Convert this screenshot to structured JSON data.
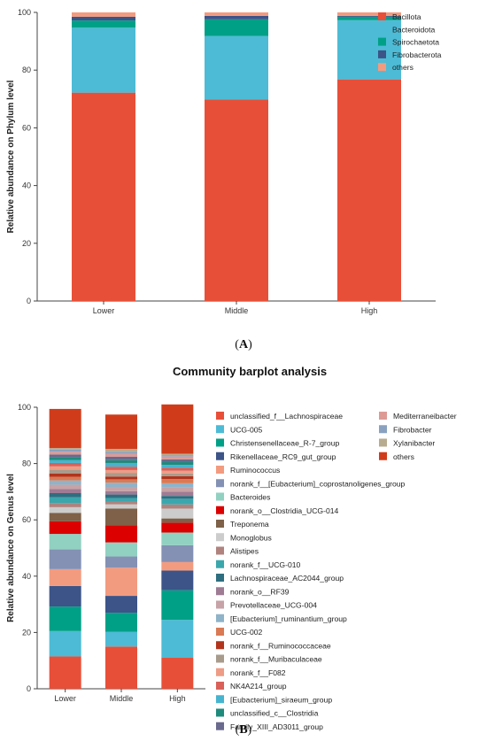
{
  "colors": {
    "Bacillota": "#e84f38",
    "Bacteroidota": "#4dbbd5",
    "Spirochaetota": "#00a087",
    "Fibrobacterota": "#3c5488",
    "others_A": "#f39b7f"
  },
  "panel_a_label": "A",
  "panel_b_label": "B",
  "chart_data": [
    {
      "type": "bar",
      "stacked": true,
      "title": "",
      "xlabel": "",
      "ylabel": "Relative abundance on Phylum level",
      "ylim": [
        0,
        100
      ],
      "yticks": [
        "0",
        "20",
        "40",
        "60",
        "80",
        "100"
      ],
      "categories": [
        "Lower",
        "Middle",
        "High"
      ],
      "legend_position": "right",
      "series": [
        {
          "name": "Bacillota",
          "color": "#e84f38",
          "values": [
            72.2,
            69.8,
            76.8
          ]
        },
        {
          "name": "Bacteroidota",
          "color": "#4dbbd5",
          "values": [
            22.5,
            22.0,
            20.5
          ]
        },
        {
          "name": "Spirochaetota",
          "color": "#00a087",
          "values": [
            2.5,
            5.8,
            1.2
          ]
        },
        {
          "name": "Fibrobacterota",
          "color": "#3c5488",
          "values": [
            1.3,
            1.2,
            0.3
          ]
        },
        {
          "name": "others",
          "color": "#f39b7f",
          "values": [
            1.5,
            1.2,
            1.2
          ]
        }
      ]
    },
    {
      "type": "bar",
      "stacked": true,
      "title": "Community barplot analysis",
      "xlabel": "",
      "ylabel": "Relative abundance on Genus level",
      "ylim": [
        0,
        100
      ],
      "yticks": [
        "0",
        "20",
        "40",
        "60",
        "80",
        "100"
      ],
      "categories": [
        "Lower",
        "Middle",
        "High"
      ],
      "legend_position": "right",
      "series": [
        {
          "name": "unclassified_f__Lachnospiraceae",
          "color": "#e84f38",
          "values": [
            11.5,
            15.0,
            11.0
          ]
        },
        {
          "name": "UCG-005",
          "color": "#4dbbd5",
          "values": [
            9.0,
            5.2,
            13.5
          ]
        },
        {
          "name": "Christensenellaceae_R-7_group",
          "color": "#00a087",
          "values": [
            8.7,
            6.8,
            10.5
          ]
        },
        {
          "name": "Rikenellaceae_RC9_gut_group",
          "color": "#3c5488",
          "values": [
            7.3,
            6.0,
            7.0
          ]
        },
        {
          "name": "Ruminococcus",
          "color": "#f39b7f",
          "values": [
            6.0,
            10.0,
            3.0
          ]
        },
        {
          "name": "norank_f__[Eubacterium]_coprostanoligenes_group",
          "color": "#8491b4",
          "values": [
            7.0,
            4.0,
            6.0
          ]
        },
        {
          "name": "Bacteroides",
          "color": "#91d1c2",
          "values": [
            5.5,
            5.0,
            4.5
          ]
        },
        {
          "name": "norank_o__Clostridia_UCG-014",
          "color": "#dc0000",
          "values": [
            4.5,
            6.0,
            3.5
          ]
        },
        {
          "name": "Treponema",
          "color": "#7e6148",
          "values": [
            3.0,
            6.0,
            1.5
          ]
        },
        {
          "name": "Monoglobus",
          "color": "#cccccc",
          "values": [
            2.0,
            1.5,
            3.5
          ]
        },
        {
          "name": "Alistipes",
          "color": "#b0837e",
          "values": [
            1.5,
            1.0,
            1.5
          ]
        },
        {
          "name": "norank_f__UCG-010",
          "color": "#3aa7ad",
          "values": [
            2.0,
            1.2,
            2.0
          ]
        },
        {
          "name": "Lachnospiraceae_AC2044_group",
          "color": "#2e6e80",
          "values": [
            1.5,
            1.3,
            1.0
          ]
        },
        {
          "name": "norank_o__RF39",
          "color": "#9f7b94",
          "values": [
            1.5,
            1.2,
            1.5
          ]
        },
        {
          "name": "Prevotellaceae_UCG-004",
          "color": "#c7a2a6",
          "values": [
            1.5,
            1.5,
            1.5
          ]
        },
        {
          "name": "[Eubacterium]_ruminantium_group",
          "color": "#8fb3c9",
          "values": [
            1.5,
            1.5,
            1.5
          ]
        },
        {
          "name": "UCG-002",
          "color": "#d97a54",
          "values": [
            1.3,
            1.2,
            1.5
          ]
        },
        {
          "name": "norank_f__Ruminococcaceae",
          "color": "#b2341c",
          "values": [
            1.2,
            1.0,
            1.0
          ]
        },
        {
          "name": "norank_f__Muribaculaceae",
          "color": "#a89b8c",
          "values": [
            1.3,
            1.3,
            1.0
          ]
        },
        {
          "name": "norank_f__F082",
          "color": "#ee9c86",
          "values": [
            1.2,
            1.0,
            1.0
          ]
        },
        {
          "name": "NK4A214_group",
          "color": "#d9615a",
          "values": [
            1.2,
            1.2,
            1.0
          ]
        },
        {
          "name": "[Eubacterium]_siraeum_group",
          "color": "#46b4cf",
          "values": [
            1.0,
            1.3,
            1.0
          ]
        },
        {
          "name": "unclassified_c__Clostridia",
          "color": "#1e8b7c",
          "values": [
            1.0,
            1.0,
            1.0
          ]
        },
        {
          "name": "Family_XIII_AD3011_group",
          "color": "#6a6a8e",
          "values": [
            1.0,
            1.2,
            1.0
          ]
        },
        {
          "name": "Mediterraneibacter",
          "color": "#dd9a95",
          "values": [
            1.0,
            1.0,
            1.0
          ]
        },
        {
          "name": "Fibrobacter",
          "color": "#8aa2c0",
          "values": [
            0.8,
            0.8,
            0.5
          ]
        },
        {
          "name": "Xylanibacter",
          "color": "#b8ac90",
          "values": [
            0.5,
            1.0,
            0.5
          ]
        },
        {
          "name": "others",
          "color": "#d03c1a",
          "values": [
            13.9,
            12.2,
            17.5
          ]
        }
      ]
    }
  ]
}
